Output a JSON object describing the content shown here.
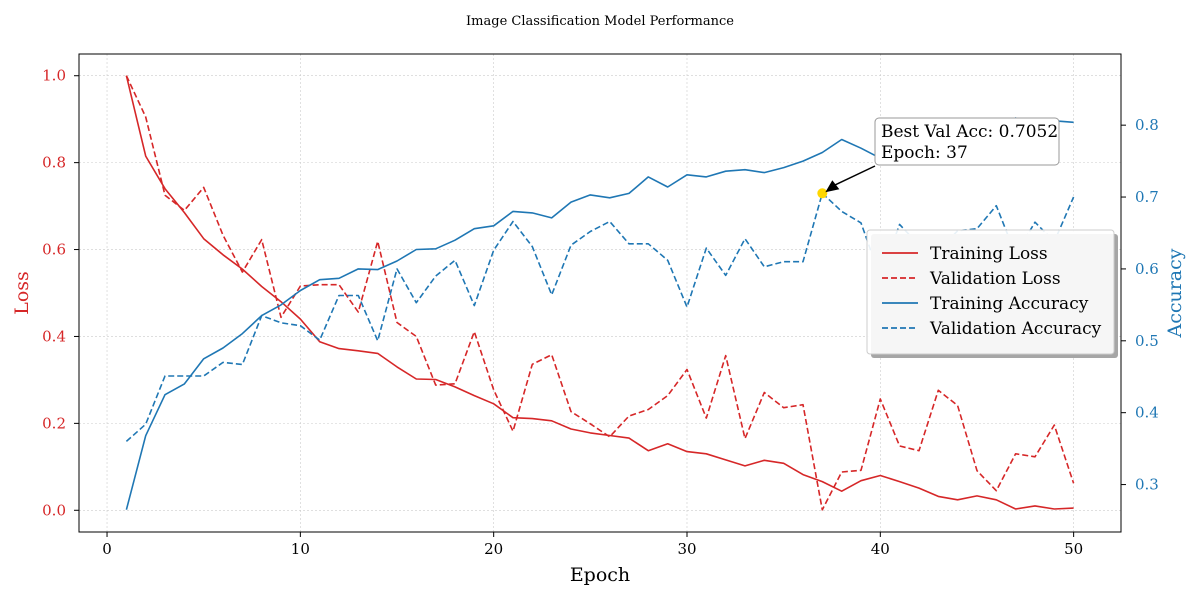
{
  "chart_data": {
    "type": "line",
    "title": "Image Classification Model Performance",
    "xlabel": "Epoch",
    "ylabel_left": "Loss",
    "ylabel_right": "Accuracy",
    "xlim": [
      -1.45,
      52.45
    ],
    "ylim_left": [
      -0.05,
      1.05
    ],
    "ylim_right": [
      0.234,
      0.899
    ],
    "x_ticks": [
      0,
      10,
      20,
      30,
      40,
      50
    ],
    "y_left_ticks": [
      "0.0",
      "0.2",
      "0.4",
      "0.6",
      "0.8",
      "1.0"
    ],
    "y_right_ticks": [
      "0.3",
      "0.4",
      "0.5",
      "0.6",
      "0.7",
      "0.8"
    ],
    "grid": true,
    "legend_position": "center-right",
    "epochs": [
      1,
      2,
      3,
      4,
      5,
      6,
      7,
      8,
      9,
      10,
      11,
      12,
      13,
      14,
      15,
      16,
      17,
      18,
      19,
      20,
      21,
      22,
      23,
      24,
      25,
      26,
      27,
      28,
      29,
      30,
      31,
      32,
      33,
      34,
      35,
      36,
      37,
      38,
      39,
      40,
      41,
      42,
      43,
      44,
      45,
      46,
      47,
      48,
      49,
      50
    ],
    "series": [
      {
        "name": "Training Loss",
        "axis": "left",
        "style": "solid",
        "color": "#d62728",
        "values": [
          1.0,
          0.815,
          0.74,
          0.685,
          0.625,
          0.588,
          0.555,
          0.515,
          0.48,
          0.44,
          0.388,
          0.372,
          0.367,
          0.361,
          0.33,
          0.302,
          0.301,
          0.284,
          0.264,
          0.245,
          0.213,
          0.211,
          0.206,
          0.187,
          0.178,
          0.172,
          0.166,
          0.137,
          0.153,
          0.135,
          0.13,
          0.116,
          0.102,
          0.115,
          0.108,
          0.082,
          0.066,
          0.044,
          0.068,
          0.08,
          0.066,
          0.051,
          0.032,
          0.024,
          0.033,
          0.024,
          0.003,
          0.01,
          0.003,
          0.005
        ]
      },
      {
        "name": "Validation Loss",
        "axis": "left",
        "style": "dashed",
        "color": "#d62728",
        "values": [
          1.0,
          0.905,
          0.725,
          0.69,
          0.743,
          0.633,
          0.548,
          0.623,
          0.444,
          0.516,
          0.519,
          0.519,
          0.456,
          0.619,
          0.432,
          0.4,
          0.288,
          0.291,
          0.411,
          0.277,
          0.182,
          0.336,
          0.358,
          0.227,
          0.199,
          0.169,
          0.217,
          0.232,
          0.264,
          0.324,
          0.212,
          0.356,
          0.165,
          0.271,
          0.236,
          0.243,
          0.001,
          0.088,
          0.092,
          0.256,
          0.148,
          0.137,
          0.276,
          0.241,
          0.091,
          0.045,
          0.13,
          0.123,
          0.196,
          0.062
        ]
      },
      {
        "name": "Training Accuracy",
        "axis": "right",
        "style": "solid",
        "color": "#1f77b4",
        "values": [
          0.265,
          0.368,
          0.425,
          0.44,
          0.475,
          0.49,
          0.51,
          0.535,
          0.55,
          0.57,
          0.585,
          0.587,
          0.6,
          0.599,
          0.611,
          0.627,
          0.628,
          0.64,
          0.656,
          0.66,
          0.68,
          0.678,
          0.671,
          0.693,
          0.703,
          0.699,
          0.705,
          0.728,
          0.714,
          0.731,
          0.728,
          0.736,
          0.738,
          0.734,
          0.741,
          0.75,
          0.762,
          0.78,
          0.768,
          0.754,
          0.765,
          0.768,
          0.777,
          0.79,
          0.781,
          0.777,
          0.81,
          0.796,
          0.806,
          0.804
        ]
      },
      {
        "name": "Validation Accuracy",
        "axis": "right",
        "style": "dashed",
        "color": "#1f77b4",
        "values": [
          0.36,
          0.384,
          0.451,
          0.451,
          0.451,
          0.47,
          0.467,
          0.535,
          0.525,
          0.521,
          0.501,
          0.563,
          0.563,
          0.5,
          0.6,
          0.553,
          0.59,
          0.612,
          0.549,
          0.626,
          0.666,
          0.631,
          0.564,
          0.633,
          0.652,
          0.666,
          0.635,
          0.635,
          0.612,
          0.547,
          0.629,
          0.591,
          0.642,
          0.603,
          0.61,
          0.61,
          0.7052,
          0.68,
          0.664,
          0.588,
          0.662,
          0.633,
          0.625,
          0.653,
          0.656,
          0.688,
          0.62,
          0.665,
          0.638,
          0.7
        ]
      }
    ],
    "highlight": {
      "label": "Best Val Acc: 0.7052",
      "label2": "Epoch: 37",
      "x": 37,
      "y": 0.7052,
      "axis": "right",
      "color": "#ffd700"
    }
  }
}
